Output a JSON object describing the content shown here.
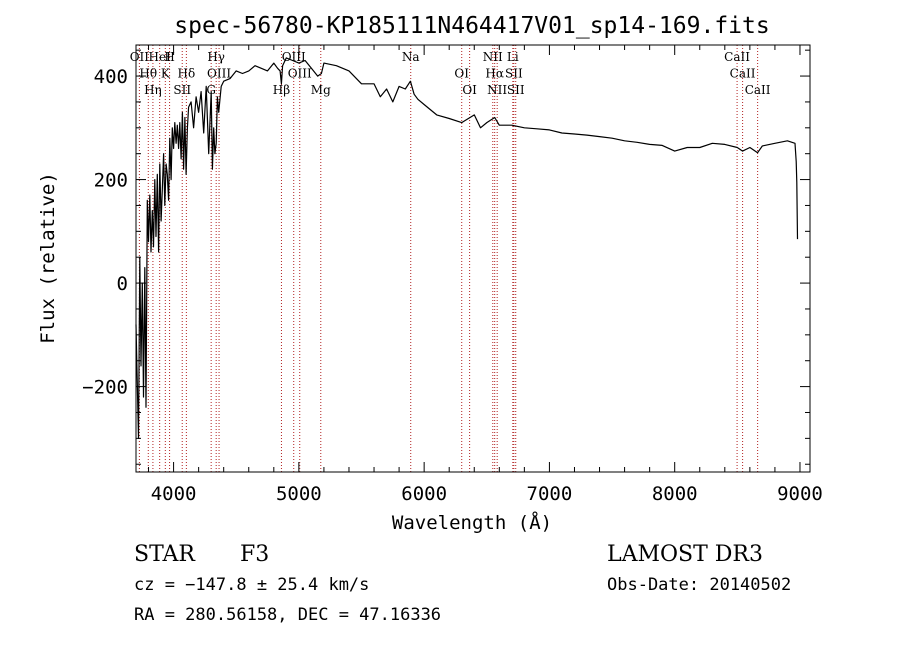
{
  "chart_data": {
    "type": "line",
    "title": "spec-56780-KP185111N464417V01_sp14-169.fits",
    "xlabel": "Wavelength (Å)",
    "ylabel": "Flux (relative)",
    "xlim": [
      3700,
      9080
    ],
    "ylim": [
      -365,
      460
    ],
    "x_ticks": [
      4000,
      5000,
      6000,
      7000,
      8000,
      9000
    ],
    "x_tick_labels": [
      "4000",
      "5000",
      "6000",
      "7000",
      "8000",
      "9000"
    ],
    "y_ticks": [
      -200,
      0,
      200,
      400
    ],
    "y_tick_labels": [
      "−200",
      "0",
      "200",
      "400"
    ],
    "grid": false,
    "legend": "none",
    "series": [
      {
        "color": "#000000",
        "x": [
          3700,
          3720,
          3730,
          3740,
          3750,
          3760,
          3770,
          3780,
          3790,
          3800,
          3810,
          3820,
          3830,
          3840,
          3850,
          3860,
          3870,
          3880,
          3890,
          3900,
          3910,
          3920,
          3930,
          3940,
          3950,
          3960,
          3970,
          3980,
          3990,
          4000,
          4010,
          4020,
          4030,
          4040,
          4050,
          4060,
          4070,
          4080,
          4090,
          4100,
          4110,
          4120,
          4140,
          4160,
          4180,
          4200,
          4220,
          4240,
          4260,
          4280,
          4300,
          4310,
          4320,
          4330,
          4340,
          4350,
          4360,
          4380,
          4400,
          4450,
          4500,
          4550,
          4600,
          4650,
          4700,
          4750,
          4800,
          4830,
          4850,
          4861,
          4870,
          4900,
          4950,
          5000,
          5050,
          5100,
          5150,
          5180,
          5200,
          5300,
          5400,
          5500,
          5600,
          5650,
          5700,
          5750,
          5800,
          5850,
          5890,
          5920,
          5950,
          6000,
          6100,
          6200,
          6300,
          6400,
          6450,
          6500,
          6563,
          6600,
          6700,
          6800,
          6900,
          7000,
          7100,
          7200,
          7300,
          7400,
          7500,
          7600,
          7700,
          7800,
          7900,
          8000,
          8100,
          8200,
          8300,
          8400,
          8500,
          8542,
          8600,
          8662,
          8700,
          8800,
          8900,
          8960,
          8970,
          8975,
          8980
        ],
        "y": [
          -80,
          -300,
          50,
          -160,
          0,
          -220,
          30,
          -240,
          160,
          80,
          170,
          60,
          140,
          70,
          200,
          90,
          210,
          60,
          230,
          120,
          180,
          250,
          150,
          230,
          210,
          160,
          280,
          200,
          300,
          260,
          310,
          270,
          305,
          260,
          310,
          240,
          330,
          220,
          320,
          210,
          300,
          340,
          350,
          300,
          360,
          330,
          370,
          290,
          380,
          250,
          370,
          220,
          300,
          250,
          270,
          360,
          330,
          380,
          390,
          395,
          410,
          405,
          410,
          420,
          415,
          410,
          425,
          415,
          410,
          385,
          420,
          435,
          430,
          425,
          430,
          415,
          400,
          405,
          425,
          420,
          410,
          385,
          385,
          360,
          375,
          350,
          380,
          375,
          390,
          365,
          355,
          345,
          325,
          318,
          310,
          325,
          300,
          310,
          320,
          305,
          305,
          300,
          298,
          296,
          290,
          288,
          286,
          283,
          280,
          275,
          272,
          268,
          266,
          255,
          262,
          262,
          270,
          268,
          262,
          255,
          262,
          252,
          265,
          270,
          275,
          270,
          235,
          195,
          85
        ]
      }
    ],
    "line_markers": [
      {
        "name": "OII",
        "x": 3727
      },
      {
        "name": "Hθ",
        "x": 3798
      },
      {
        "name": "Hη",
        "x": 3835
      },
      {
        "name": "HeI",
        "x": 3889
      },
      {
        "name": "K",
        "x": 3934
      },
      {
        "name": "SII",
        "x": 4069
      },
      {
        "name": "H",
        "x": 3968
      },
      {
        "name": "Hδ",
        "x": 4102
      },
      {
        "name": "G",
        "x": 4300
      },
      {
        "name": "Hγ",
        "x": 4340
      },
      {
        "name": "OIII",
        "x": 4363
      },
      {
        "name": "Hβ",
        "x": 4861
      },
      {
        "name": "OIII",
        "x": 4959
      },
      {
        "name": "OIII",
        "x": 5007
      },
      {
        "name": "Mg",
        "x": 5175
      },
      {
        "name": "Na",
        "x": 5893
      },
      {
        "name": "OI",
        "x": 6300
      },
      {
        "name": "OI",
        "x": 6363
      },
      {
        "name": "NII",
        "x": 6548
      },
      {
        "name": "Hα",
        "x": 6563
      },
      {
        "name": "NII",
        "x": 6583
      },
      {
        "name": "Li",
        "x": 6708
      },
      {
        "name": "SII",
        "x": 6716
      },
      {
        "name": "SII",
        "x": 6731
      },
      {
        "name": "CaII",
        "x": 8498
      },
      {
        "name": "CaII",
        "x": 8542
      },
      {
        "name": "CaII",
        "x": 8662
      }
    ]
  },
  "info": {
    "object_class": "STAR",
    "subclass": "F3",
    "survey": "LAMOST DR3",
    "redshift": "cz = −147.8 ± 25.4 km/s",
    "obs_date": "Obs-Date: 20140502",
    "coords": "RA = 280.56158, DEC =  47.16336"
  }
}
